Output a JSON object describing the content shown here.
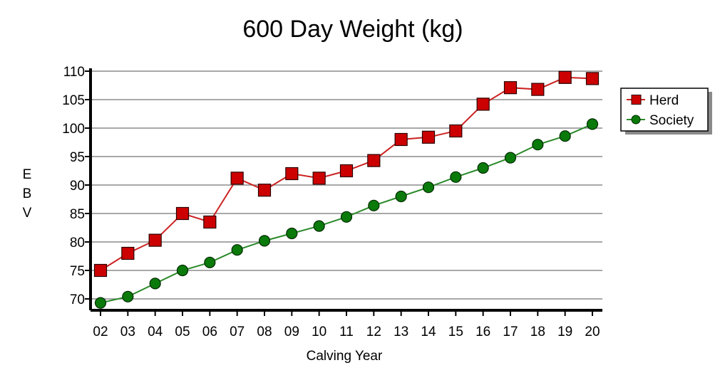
{
  "chart_data": {
    "type": "line",
    "title": "600 Day Weight (kg)",
    "xlabel": "Calving Year",
    "ylabel": "EBV",
    "categories": [
      "02",
      "03",
      "04",
      "05",
      "06",
      "07",
      "08",
      "09",
      "10",
      "11",
      "12",
      "13",
      "14",
      "15",
      "16",
      "17",
      "18",
      "19",
      "20"
    ],
    "ylim": [
      68,
      110
    ],
    "yticks": [
      70,
      75,
      80,
      85,
      90,
      95,
      100,
      105,
      110
    ],
    "grid": true,
    "legend_position": "top-right",
    "series": [
      {
        "name": "Herd",
        "marker": "square",
        "color": "#cc0000",
        "line_color": "#cc2222",
        "values": [
          75,
          78,
          80.3,
          85,
          83.5,
          91.2,
          89.1,
          92,
          91.2,
          92.5,
          94.3,
          98,
          98.4,
          99.5,
          104.2,
          107.1,
          106.8,
          108.9,
          108.7
        ]
      },
      {
        "name": "Society",
        "marker": "circle",
        "color": "#0a7a0a",
        "line_color": "#2a8a2a",
        "values": [
          69.3,
          70.4,
          72.7,
          75,
          76.4,
          78.6,
          80.2,
          81.5,
          82.8,
          84.4,
          86.4,
          88,
          89.6,
          91.4,
          93,
          94.8,
          97.1,
          98.6,
          100.7
        ]
      }
    ]
  }
}
